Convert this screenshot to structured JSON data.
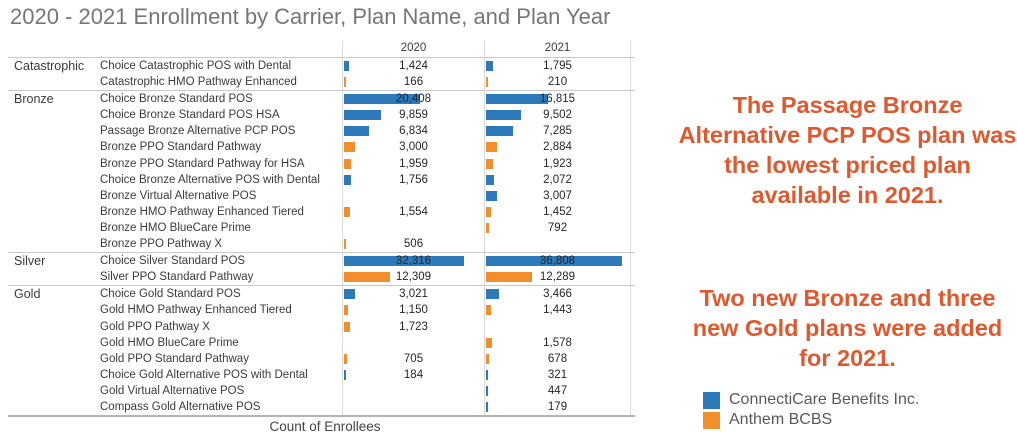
{
  "title": "2020 - 2021 Enrollment by Carrier, Plan Name, and Plan Year",
  "colors": {
    "connecticare": "#2E79B9",
    "anthem": "#F28E2B",
    "annotation": "#E0592E",
    "title_gray": "#767676"
  },
  "chart_data": {
    "type": "bar",
    "title": "2020 - 2021 Enrollment by Carrier, Plan Name, and Plan Year",
    "xlabel": "Count of Enrollees",
    "columns": [
      "2020",
      "2021"
    ],
    "xlim": [
      0,
      37000
    ],
    "grid": false,
    "legend_position": "bottom-right",
    "series_note": "one horizontal bar per plan per year; color = carrier",
    "groups": [
      {
        "tier": "Catastrophic",
        "plans": [
          {
            "name": "Choice Catastrophic POS with Dental",
            "carrier": "connecticare",
            "v2020": 1424,
            "v2021": 1795
          },
          {
            "name": "Catastrophic HMO Pathway Enhanced",
            "carrier": "anthem",
            "v2020": 166,
            "v2021": 210
          }
        ]
      },
      {
        "tier": "Bronze",
        "plans": [
          {
            "name": "Choice Bronze Standard POS",
            "carrier": "connecticare",
            "v2020": 20408,
            "v2021": 16815
          },
          {
            "name": "Choice Bronze Standard POS HSA",
            "carrier": "connecticare",
            "v2020": 9859,
            "v2021": 9502
          },
          {
            "name": "Passage Bronze Alternative PCP POS",
            "carrier": "connecticare",
            "v2020": 6834,
            "v2021": 7285
          },
          {
            "name": "Bronze PPO Standard Pathway",
            "carrier": "anthem",
            "v2020": 3000,
            "v2021": 2884
          },
          {
            "name": "Bronze PPO Standard Pathway for HSA",
            "carrier": "anthem",
            "v2020": 1959,
            "v2021": 1923
          },
          {
            "name": "Choice Bronze Alternative POS with Dental",
            "carrier": "connecticare",
            "v2020": 1756,
            "v2021": 2072
          },
          {
            "name": "Bronze Virtual Alternative POS",
            "carrier": "connecticare",
            "v2020": null,
            "v2021": 3007
          },
          {
            "name": "Bronze HMO Pathway Enhanced Tiered",
            "carrier": "anthem",
            "v2020": 1554,
            "v2021": 1452
          },
          {
            "name": "Bronze HMO BlueCare Prime",
            "carrier": "anthem",
            "v2020": null,
            "v2021": 792
          },
          {
            "name": "Bronze PPO Pathway X",
            "carrier": "anthem",
            "v2020": 506,
            "v2021": null
          }
        ]
      },
      {
        "tier": "Silver",
        "plans": [
          {
            "name": "Choice Silver Standard POS",
            "carrier": "connecticare",
            "v2020": 32316,
            "v2021": 36808
          },
          {
            "name": "Silver PPO Standard Pathway",
            "carrier": "anthem",
            "v2020": 12309,
            "v2021": 12289
          }
        ]
      },
      {
        "tier": "Gold",
        "plans": [
          {
            "name": "Choice Gold Standard POS",
            "carrier": "connecticare",
            "v2020": 3021,
            "v2021": 3466
          },
          {
            "name": "Gold HMO Pathway Enhanced Tiered",
            "carrier": "anthem",
            "v2020": 1150,
            "v2021": 1443
          },
          {
            "name": "Gold PPO Pathway X",
            "carrier": "anthem",
            "v2020": 1723,
            "v2021": null
          },
          {
            "name": "Gold HMO BlueCare Prime",
            "carrier": "anthem",
            "v2020": null,
            "v2021": 1578
          },
          {
            "name": "Gold PPO Standard Pathway",
            "carrier": "anthem",
            "v2020": 705,
            "v2021": 678
          },
          {
            "name": "Choice Gold Alternative POS with Dental",
            "carrier": "connecticare",
            "v2020": 184,
            "v2021": 321
          },
          {
            "name": "Gold Virtual Alternative POS",
            "carrier": "connecticare",
            "v2020": null,
            "v2021": 447
          },
          {
            "name": "Compass Gold Alternative POS",
            "carrier": "connecticare",
            "v2020": null,
            "v2021": 179
          }
        ]
      }
    ]
  },
  "annotations": {
    "first": "The Passage Bronze Alternative PCP POS plan was the lowest priced plan available in 2021.",
    "second": "Two new Bronze and three new Gold plans were added for 2021."
  },
  "legend": {
    "items": [
      {
        "label": "ConnectiCare Benefits Inc.",
        "carrier": "connecticare"
      },
      {
        "label": "Anthem BCBS",
        "carrier": "anthem"
      }
    ]
  }
}
